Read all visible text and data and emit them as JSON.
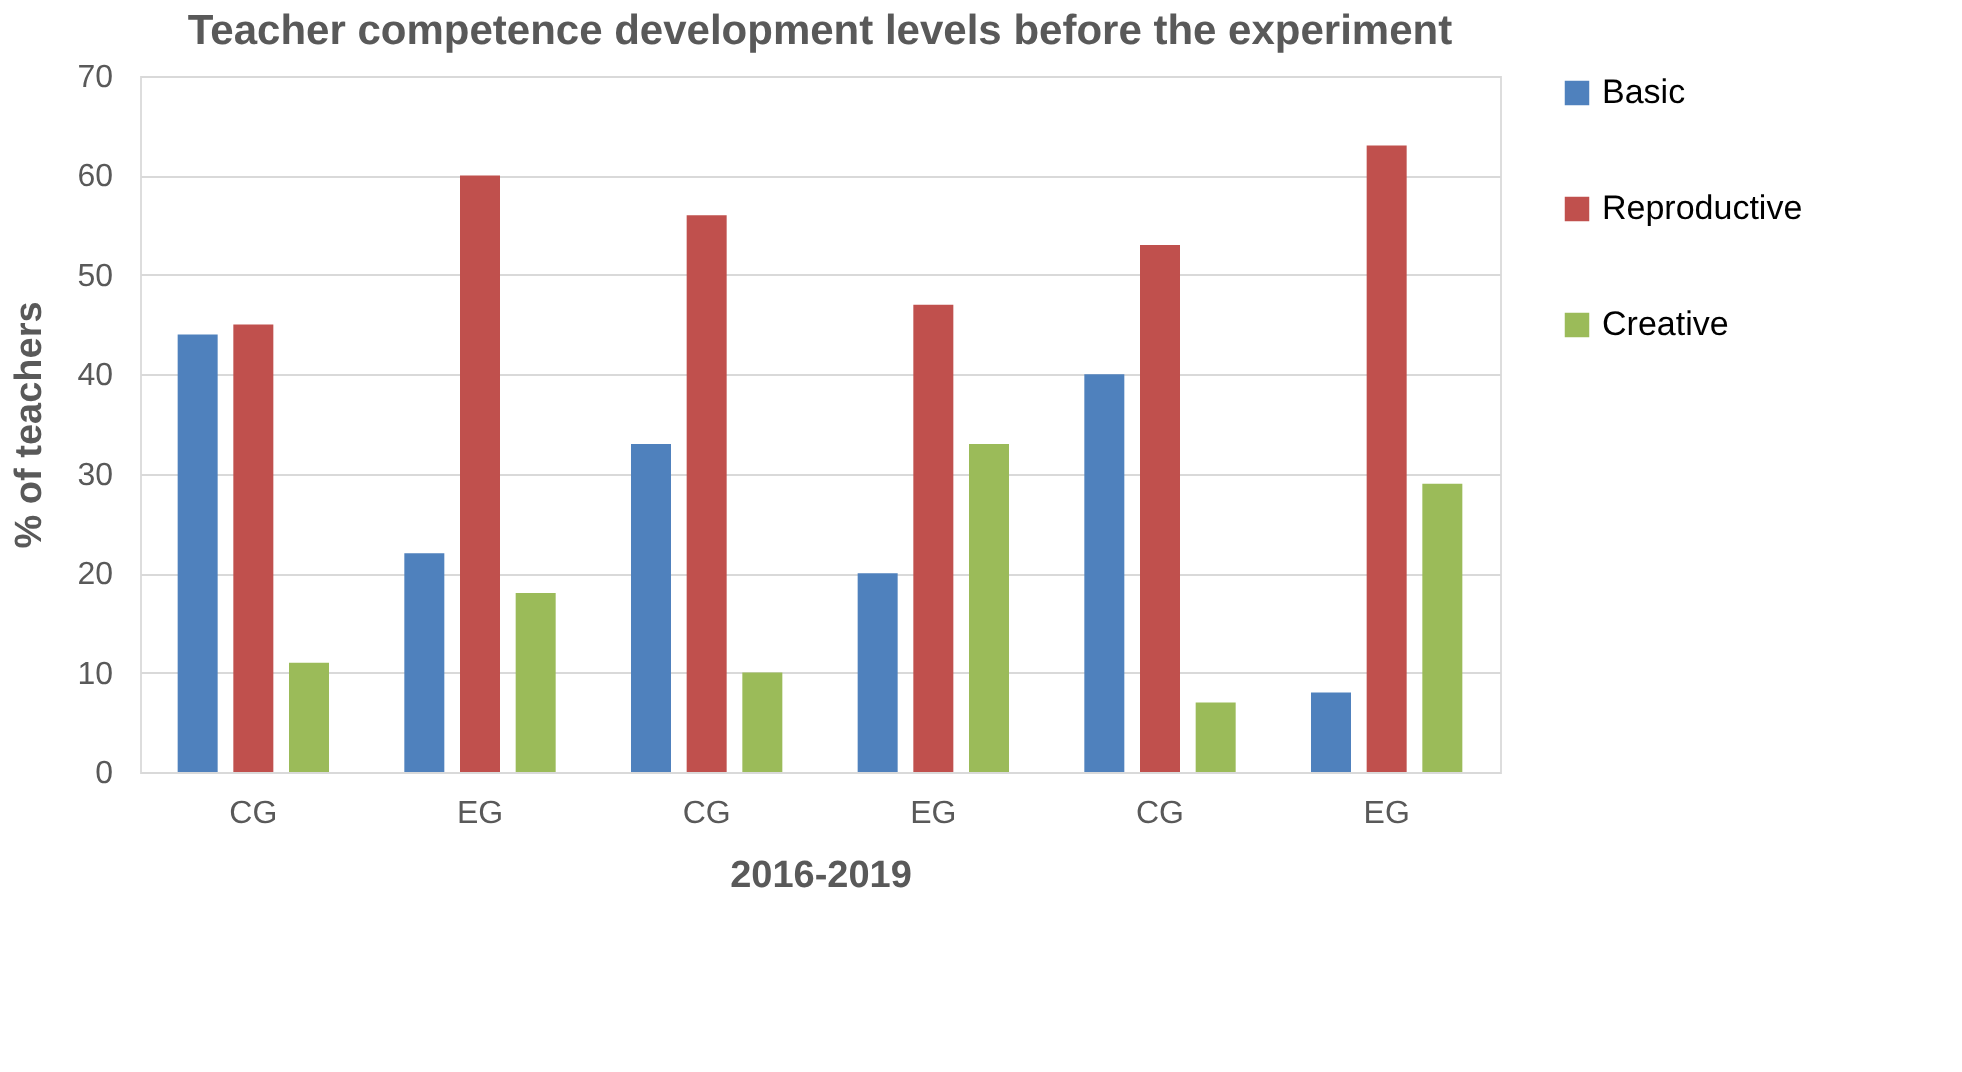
{
  "chart_data": {
    "type": "bar",
    "title": "Teacher competence development levels before the experiment",
    "xlabel": "2016-2019",
    "ylabel": "% of teachers",
    "categories": [
      "CG",
      "EG",
      "CG",
      "EG",
      "CG",
      "EG"
    ],
    "series": [
      {
        "name": "Basic",
        "color": "#4f81bd",
        "values": [
          44,
          22,
          33,
          20,
          40,
          8
        ]
      },
      {
        "name": "Reproductive",
        "color": "#c0504d",
        "values": [
          45,
          60,
          56,
          47,
          53,
          63
        ]
      },
      {
        "name": "Creative",
        "color": "#9bbb59",
        "values": [
          11,
          18,
          10,
          33,
          7,
          29
        ]
      }
    ],
    "ylim": [
      0,
      70
    ],
    "yticks": [
      0,
      10,
      20,
      30,
      40,
      50,
      60,
      70
    ],
    "grid": "y",
    "legend": "right"
  }
}
